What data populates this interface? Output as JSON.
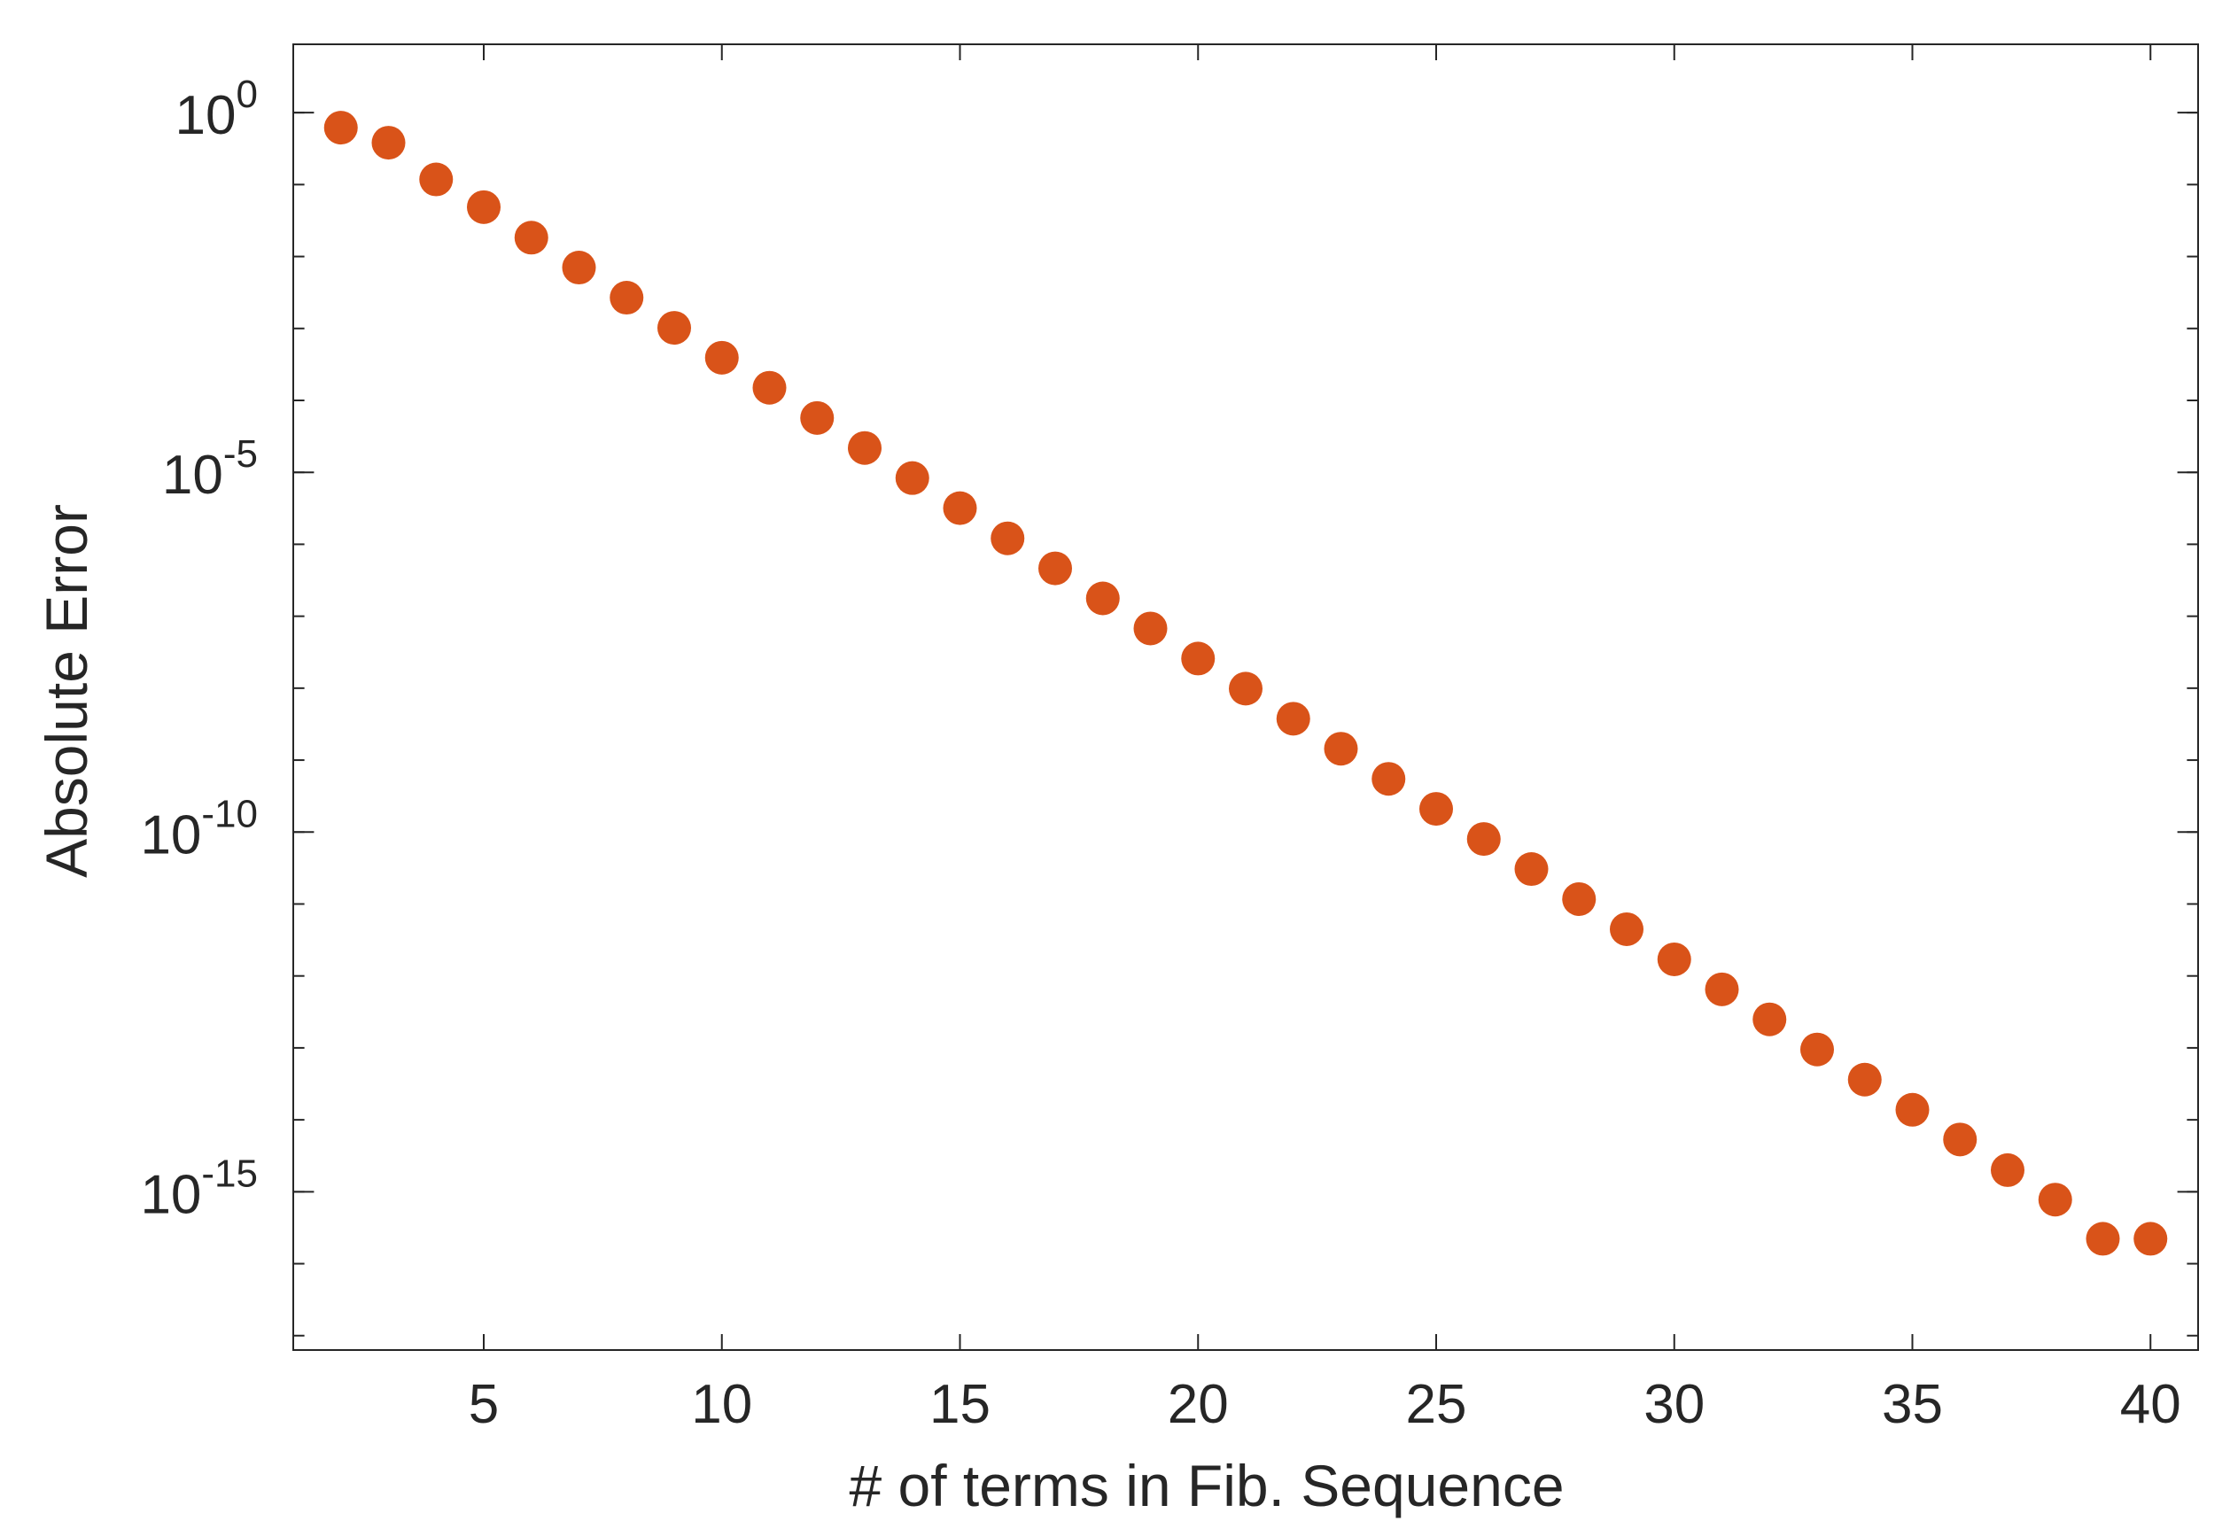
{
  "chart_data": {
    "type": "scatter",
    "xlabel": "# of terms in Fib. Sequence",
    "ylabel": "Absolute Error",
    "xlim": [
      1,
      41
    ],
    "ylim_log10": [
      -17.2,
      0.95
    ],
    "y_scale": "log",
    "grid": false,
    "x_ticks": [
      5,
      10,
      15,
      20,
      25,
      30,
      35,
      40
    ],
    "y_ticks": [
      {
        "base": "10",
        "exp": "0",
        "log10": 0
      },
      {
        "base": "10",
        "exp": "-5",
        "log10": -5
      },
      {
        "base": "10",
        "exp": "-10",
        "log10": -10
      },
      {
        "base": "10",
        "exp": "-15",
        "log10": -15
      }
    ],
    "marker_color": "#d95319",
    "series": [
      {
        "x": [
          2,
          3,
          4,
          5,
          6,
          7,
          8,
          9,
          10,
          11,
          12,
          13,
          14,
          15,
          16,
          17,
          18,
          19,
          20,
          21,
          22,
          23,
          24,
          25,
          26,
          27,
          28,
          29,
          30,
          31,
          32,
          33,
          34,
          35,
          36,
          37,
          38,
          39,
          40
        ],
        "y": [
          0.618,
          0.382,
          0.118,
          0.0486,
          0.0183,
          0.00702,
          0.00268,
          0.00102,
          0.000392,
          0.00015,
          5.7e-05,
          2.18e-05,
          8.33e-06,
          3.18e-06,
          1.21e-06,
          4.63e-07,
          1.77e-07,
          6.76e-08,
          2.58e-08,
          9.85e-09,
          3.76e-09,
          1.44e-09,
          5.49e-10,
          2.1e-10,
          8.01e-11,
          3.06e-11,
          1.17e-11,
          4.46e-12,
          1.7e-12,
          6.51e-13,
          2.49e-13,
          9.5e-14,
          3.62e-14,
          1.38e-14,
          5.33e-15,
          2e-15,
          7.77e-16,
          2.22e-16,
          2.22e-16
        ]
      }
    ]
  }
}
